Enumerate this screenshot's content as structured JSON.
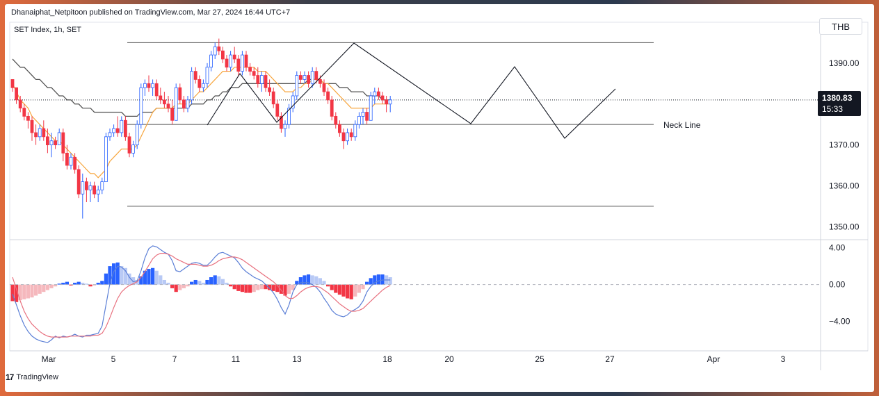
{
  "publisher": "Dhanaiphat_Netpitoon published on TradingView.com, Mar 27, 2024 16:44 UTC+7",
  "symbol_title": "SET Index, 1h, SET",
  "currency_button": "THB",
  "last_price": "1380.83",
  "countdown": "15:33",
  "brand": "TradingView",
  "brand_logo": "17",
  "colors": {
    "up": "#2962ff",
    "down": "#f23645",
    "ema_fast": "#f7a53c",
    "ma_slow": "#555555",
    "macd": "#5b7fd6",
    "signal": "#e8707e"
  },
  "chart_data": [
    {
      "type": "candlestick",
      "title": "SET Index, 1h, SET",
      "y_ticks": [
        1350,
        1360,
        1370,
        1390
      ],
      "y_tick_labels": [
        "1350.00",
        "1360.00",
        "1370.00",
        "1390.00"
      ],
      "ylim": [
        1347,
        1400
      ],
      "x_tick_labels": [
        "Mar",
        "5",
        "7",
        "11",
        "13",
        "18",
        "20",
        "25",
        "27",
        "Apr",
        "3"
      ],
      "annotations": [
        {
          "text": "Neck Line",
          "y": 1375
        }
      ],
      "horizontal_levels": [
        1395,
        1375,
        1355
      ],
      "ohlc": [
        [
          1386,
          1386,
          1383,
          1384
        ],
        [
          1384,
          1384,
          1380,
          1381
        ],
        [
          1381,
          1382,
          1378,
          1379
        ],
        [
          1379,
          1380,
          1376,
          1377
        ],
        [
          1377,
          1378,
          1374,
          1376
        ],
        [
          1376,
          1377,
          1371,
          1373
        ],
        [
          1373,
          1375,
          1370,
          1372
        ],
        [
          1372,
          1375,
          1371,
          1374
        ],
        [
          1374,
          1376,
          1371,
          1372
        ],
        [
          1372,
          1374,
          1368,
          1370
        ],
        [
          1370,
          1373,
          1367,
          1371
        ],
        [
          1371,
          1372,
          1369,
          1370
        ],
        [
          1370,
          1374,
          1370,
          1373
        ],
        [
          1373,
          1374,
          1366,
          1368
        ],
        [
          1368,
          1370,
          1364,
          1365
        ],
        [
          1365,
          1368,
          1364,
          1367
        ],
        [
          1367,
          1368,
          1363,
          1364
        ],
        [
          1364,
          1365,
          1357,
          1358
        ],
        [
          1358,
          1363,
          1352,
          1361
        ],
        [
          1361,
          1362,
          1356,
          1359
        ],
        [
          1359,
          1361,
          1356,
          1360
        ],
        [
          1360,
          1361,
          1357,
          1358
        ],
        [
          1358,
          1360,
          1356,
          1359
        ],
        [
          1359,
          1362,
          1358,
          1361
        ],
        [
          1361,
          1373,
          1361,
          1372
        ],
        [
          1372,
          1374,
          1371,
          1373
        ],
        [
          1373,
          1375,
          1372,
          1374
        ],
        [
          1374,
          1377,
          1372,
          1373
        ],
        [
          1373,
          1377,
          1372,
          1376
        ],
        [
          1376,
          1377,
          1371,
          1372
        ],
        [
          1372,
          1373,
          1367,
          1368
        ],
        [
          1368,
          1371,
          1367,
          1370
        ],
        [
          1370,
          1376,
          1369,
          1375
        ],
        [
          1375,
          1385,
          1374,
          1384
        ],
        [
          1384,
          1386,
          1382,
          1385
        ],
        [
          1385,
          1387,
          1383,
          1384
        ],
        [
          1384,
          1386,
          1382,
          1385
        ],
        [
          1385,
          1386,
          1381,
          1382
        ],
        [
          1382,
          1384,
          1380,
          1381
        ],
        [
          1381,
          1383,
          1379,
          1380
        ],
        [
          1380,
          1382,
          1378,
          1379
        ],
        [
          1379,
          1381,
          1375,
          1376
        ],
        [
          1376,
          1385,
          1376,
          1384
        ],
        [
          1384,
          1385,
          1380,
          1381
        ],
        [
          1381,
          1382,
          1378,
          1379
        ],
        [
          1379,
          1382,
          1378,
          1381
        ],
        [
          1381,
          1389,
          1380,
          1388
        ],
        [
          1388,
          1389,
          1385,
          1386
        ],
        [
          1386,
          1387,
          1383,
          1384
        ],
        [
          1384,
          1386,
          1383,
          1385
        ],
        [
          1385,
          1390,
          1384,
          1389
        ],
        [
          1389,
          1393,
          1388,
          1392
        ],
        [
          1392,
          1395,
          1391,
          1394
        ],
        [
          1394,
          1396,
          1392,
          1393
        ],
        [
          1393,
          1394,
          1390,
          1391
        ],
        [
          1391,
          1392,
          1388,
          1389
        ],
        [
          1389,
          1393,
          1388,
          1392
        ],
        [
          1392,
          1394,
          1390,
          1391
        ],
        [
          1391,
          1392,
          1387,
          1388
        ],
        [
          1388,
          1393,
          1387,
          1392
        ],
        [
          1392,
          1393,
          1388,
          1389
        ],
        [
          1389,
          1390,
          1387,
          1388
        ],
        [
          1388,
          1389,
          1386,
          1387
        ],
        [
          1387,
          1389,
          1384,
          1385
        ],
        [
          1385,
          1388,
          1383,
          1387
        ],
        [
          1387,
          1388,
          1383,
          1384
        ],
        [
          1384,
          1386,
          1382,
          1383
        ],
        [
          1383,
          1384,
          1379,
          1380
        ],
        [
          1380,
          1381,
          1376,
          1377
        ],
        [
          1377,
          1378,
          1373,
          1374
        ],
        [
          1374,
          1376,
          1372,
          1375
        ],
        [
          1375,
          1380,
          1374,
          1379
        ],
        [
          1379,
          1383,
          1378,
          1382
        ],
        [
          1382,
          1388,
          1381,
          1387
        ],
        [
          1387,
          1388,
          1385,
          1386
        ],
        [
          1386,
          1388,
          1385,
          1387
        ],
        [
          1387,
          1388,
          1384,
          1385
        ],
        [
          1385,
          1389,
          1384,
          1388
        ],
        [
          1388,
          1389,
          1385,
          1386
        ],
        [
          1386,
          1387,
          1384,
          1385
        ],
        [
          1385,
          1386,
          1382,
          1383
        ],
        [
          1383,
          1384,
          1380,
          1381
        ],
        [
          1381,
          1382,
          1376,
          1377
        ],
        [
          1377,
          1378,
          1374,
          1375
        ],
        [
          1375,
          1376,
          1372,
          1373
        ],
        [
          1373,
          1374,
          1369,
          1371
        ],
        [
          1371,
          1374,
          1370,
          1373
        ],
        [
          1373,
          1374,
          1371,
          1372
        ],
        [
          1372,
          1376,
          1371,
          1375
        ],
        [
          1375,
          1378,
          1374,
          1377
        ],
        [
          1377,
          1379,
          1375,
          1378
        ],
        [
          1378,
          1379,
          1375,
          1376
        ],
        [
          1376,
          1383,
          1376,
          1382
        ],
        [
          1382,
          1384,
          1380,
          1383
        ],
        [
          1383,
          1384,
          1381,
          1382
        ],
        [
          1382,
          1383,
          1380,
          1381
        ],
        [
          1381,
          1382,
          1378,
          1380
        ],
        [
          1380,
          1382,
          1378,
          1381
        ]
      ],
      "ema_fast": [
        1385,
        1383,
        1381,
        1380,
        1379,
        1377,
        1376,
        1375,
        1374,
        1373,
        1372,
        1371,
        1371,
        1370,
        1369,
        1368,
        1367,
        1366,
        1365,
        1364,
        1363,
        1363,
        1362,
        1363,
        1364,
        1366,
        1367,
        1368,
        1369,
        1369,
        1369,
        1369,
        1370,
        1372,
        1374,
        1376,
        1378,
        1379,
        1379,
        1379,
        1379,
        1379,
        1380,
        1380,
        1380,
        1380,
        1381,
        1382,
        1383,
        1383,
        1384,
        1385,
        1386,
        1387,
        1388,
        1388,
        1388,
        1389,
        1389,
        1389,
        1389,
        1389,
        1389,
        1388,
        1388,
        1388,
        1387,
        1386,
        1385,
        1384,
        1383,
        1383,
        1383,
        1384,
        1384,
        1385,
        1385,
        1386,
        1386,
        1386,
        1385,
        1385,
        1384,
        1383,
        1382,
        1381,
        1380,
        1379,
        1379,
        1379,
        1379,
        1379,
        1379,
        1380,
        1380,
        1380,
        1380,
        1380
      ],
      "ma_slow": [
        1391,
        1390,
        1389,
        1389,
        1388,
        1387,
        1386,
        1386,
        1385,
        1384,
        1384,
        1383,
        1382,
        1382,
        1381,
        1381,
        1380,
        1380,
        1379,
        1379,
        1379,
        1378,
        1378,
        1378,
        1378,
        1378,
        1378,
        1378,
        1378,
        1377,
        1377,
        1377,
        1377,
        1378,
        1378,
        1378,
        1378,
        1379,
        1379,
        1379,
        1379,
        1379,
        1379,
        1379,
        1379,
        1379,
        1380,
        1380,
        1380,
        1380,
        1381,
        1381,
        1382,
        1382,
        1383,
        1383,
        1384,
        1384,
        1384,
        1385,
        1385,
        1385,
        1385,
        1385,
        1385,
        1385,
        1385,
        1385,
        1385,
        1385,
        1385,
        1385,
        1385,
        1385,
        1385,
        1385,
        1386,
        1386,
        1386,
        1386,
        1385,
        1385,
        1385,
        1385,
        1384,
        1384,
        1384,
        1383,
        1383,
        1383,
        1383,
        1382,
        1382,
        1382,
        1382,
        1381,
        1381,
        1381
      ]
    },
    {
      "type": "histogram+line",
      "title": "",
      "y_ticks": [
        4,
        0,
        -4
      ],
      "y_tick_labels": [
        "4.00",
        "0.00",
        "−4.00"
      ],
      "ylim": [
        -7.2,
        4.8
      ],
      "histogram": [
        -1.8,
        -1.9,
        -1.7,
        -1.6,
        -1.5,
        -1.4,
        -1.2,
        -1.0,
        -0.8,
        -0.6,
        -0.4,
        -0.2,
        0.1,
        0.2,
        0.3,
        -0.1,
        0.2,
        0.3,
        0.2,
        0.1,
        -0.2,
        -0.1,
        0.2,
        0.4,
        1.2,
        2.0,
        2.3,
        2.4,
        2.0,
        1.8,
        1.2,
        0.8,
        0.5,
        0.9,
        1.5,
        1.7,
        1.8,
        1.5,
        1.0,
        0.5,
        0.2,
        -0.4,
        -0.8,
        -0.6,
        -0.4,
        -0.2,
        0.3,
        0.5,
        0.4,
        0.2,
        0.5,
        0.8,
        1.0,
        0.9,
        0.6,
        0.2,
        -0.2,
        -0.5,
        -0.7,
        -0.8,
        -0.9,
        -0.9,
        -0.8,
        -0.6,
        -0.5,
        -0.5,
        -0.6,
        -0.7,
        -0.8,
        -1.0,
        -1.2,
        -1.0,
        -0.6,
        0.4,
        0.8,
        1.0,
        1.1,
        1.0,
        0.9,
        0.7,
        0.4,
        -0.2,
        -0.6,
        -0.9,
        -1.1,
        -1.3,
        -1.5,
        -1.6,
        -1.3,
        -0.9,
        -0.5,
        0.3,
        0.7,
        1.0,
        1.1,
        1.1,
        1.0,
        0.8
      ],
      "macd": [
        -1.0,
        -2.2,
        -3.4,
        -4.4,
        -5.1,
        -5.6,
        -5.9,
        -6.1,
        -6.2,
        -6.3,
        -6.0,
        -5.6,
        -5.8,
        -5.6,
        -5.7,
        -5.6,
        -5.4,
        -5.6,
        -5.7,
        -5.5,
        -5.5,
        -5.4,
        -5.3,
        -4.5,
        -2.2,
        0.1,
        1.4,
        2.0,
        1.9,
        1.5,
        0.8,
        0.3,
        0.4,
        1.5,
        2.9,
        3.9,
        4.2,
        4.1,
        3.8,
        3.5,
        3.3,
        2.6,
        1.5,
        1.4,
        1.7,
        2.0,
        2.3,
        2.4,
        2.3,
        2.1,
        2.1,
        2.5,
        3.0,
        3.4,
        3.5,
        3.3,
        3.1,
        2.9,
        2.4,
        1.8,
        1.4,
        1.1,
        0.8,
        0.6,
        0.4,
        0.0,
        -0.4,
        -0.9,
        -1.6,
        -2.5,
        -3.2,
        -2.2,
        -0.8,
        0.0,
        0.2,
        0.2,
        0.2,
        0.0,
        -0.3,
        -0.8,
        -1.5,
        -2.1,
        -2.8,
        -3.2,
        -3.4,
        -3.5,
        -3.3,
        -2.9,
        -2.7,
        -2.4,
        -1.8,
        -0.8,
        -0.2,
        0.2,
        0.4,
        0.5,
        0.5,
        0.5
      ],
      "signal": [
        0.8,
        -0.5,
        -1.8,
        -2.9,
        -3.7,
        -4.3,
        -4.7,
        -5.1,
        -5.4,
        -5.6,
        -5.7,
        -5.7,
        -5.7,
        -5.7,
        -5.7,
        -5.6,
        -5.6,
        -5.6,
        -5.6,
        -5.6,
        -5.6,
        -5.5,
        -5.5,
        -5.3,
        -4.6,
        -3.6,
        -2.5,
        -1.5,
        -0.8,
        -0.4,
        -0.1,
        0.1,
        0.3,
        0.8,
        1.4,
        2.1,
        2.8,
        3.2,
        3.4,
        3.4,
        3.3,
        3.1,
        2.8,
        2.6,
        2.4,
        2.2,
        2.2,
        2.2,
        2.1,
        2.0,
        2.0,
        2.1,
        2.3,
        2.6,
        2.8,
        2.9,
        3.0,
        3.0,
        2.9,
        2.7,
        2.4,
        2.1,
        1.8,
        1.5,
        1.2,
        0.9,
        0.6,
        0.3,
        -0.1,
        -0.6,
        -1.2,
        -1.5,
        -1.5,
        -1.2,
        -0.8,
        -0.5,
        -0.3,
        -0.2,
        -0.2,
        -0.3,
        -0.6,
        -0.9,
        -1.3,
        -1.7,
        -2.1,
        -2.4,
        -2.7,
        -2.9,
        -2.9,
        -2.8,
        -2.6,
        -2.2,
        -1.8,
        -1.4,
        -1.0,
        -0.6,
        -0.3,
        -0.1
      ]
    }
  ]
}
